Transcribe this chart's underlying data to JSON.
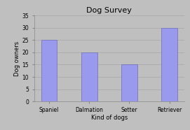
{
  "title": "Dog Survey",
  "categories": [
    "Spaniel",
    "Dalmation",
    "Setter",
    "Retriever"
  ],
  "values": [
    25,
    20,
    15,
    30
  ],
  "bar_color": "#9999ee",
  "bar_edgecolor": "#7777bb",
  "xlabel": "Kind of dogs",
  "ylabel": "Dog owners",
  "ylim": [
    0,
    35
  ],
  "yticks": [
    0,
    5,
    10,
    15,
    20,
    25,
    30,
    35
  ],
  "background_color": "#c0bfbf",
  "plot_bg_color": "#c0bfbf",
  "title_fontsize": 8,
  "axis_label_fontsize": 6,
  "tick_fontsize": 5.5,
  "bar_width": 0.4,
  "grid_color": "#aaaaaa",
  "figsize": [
    2.71,
    1.86
  ],
  "dpi": 100
}
